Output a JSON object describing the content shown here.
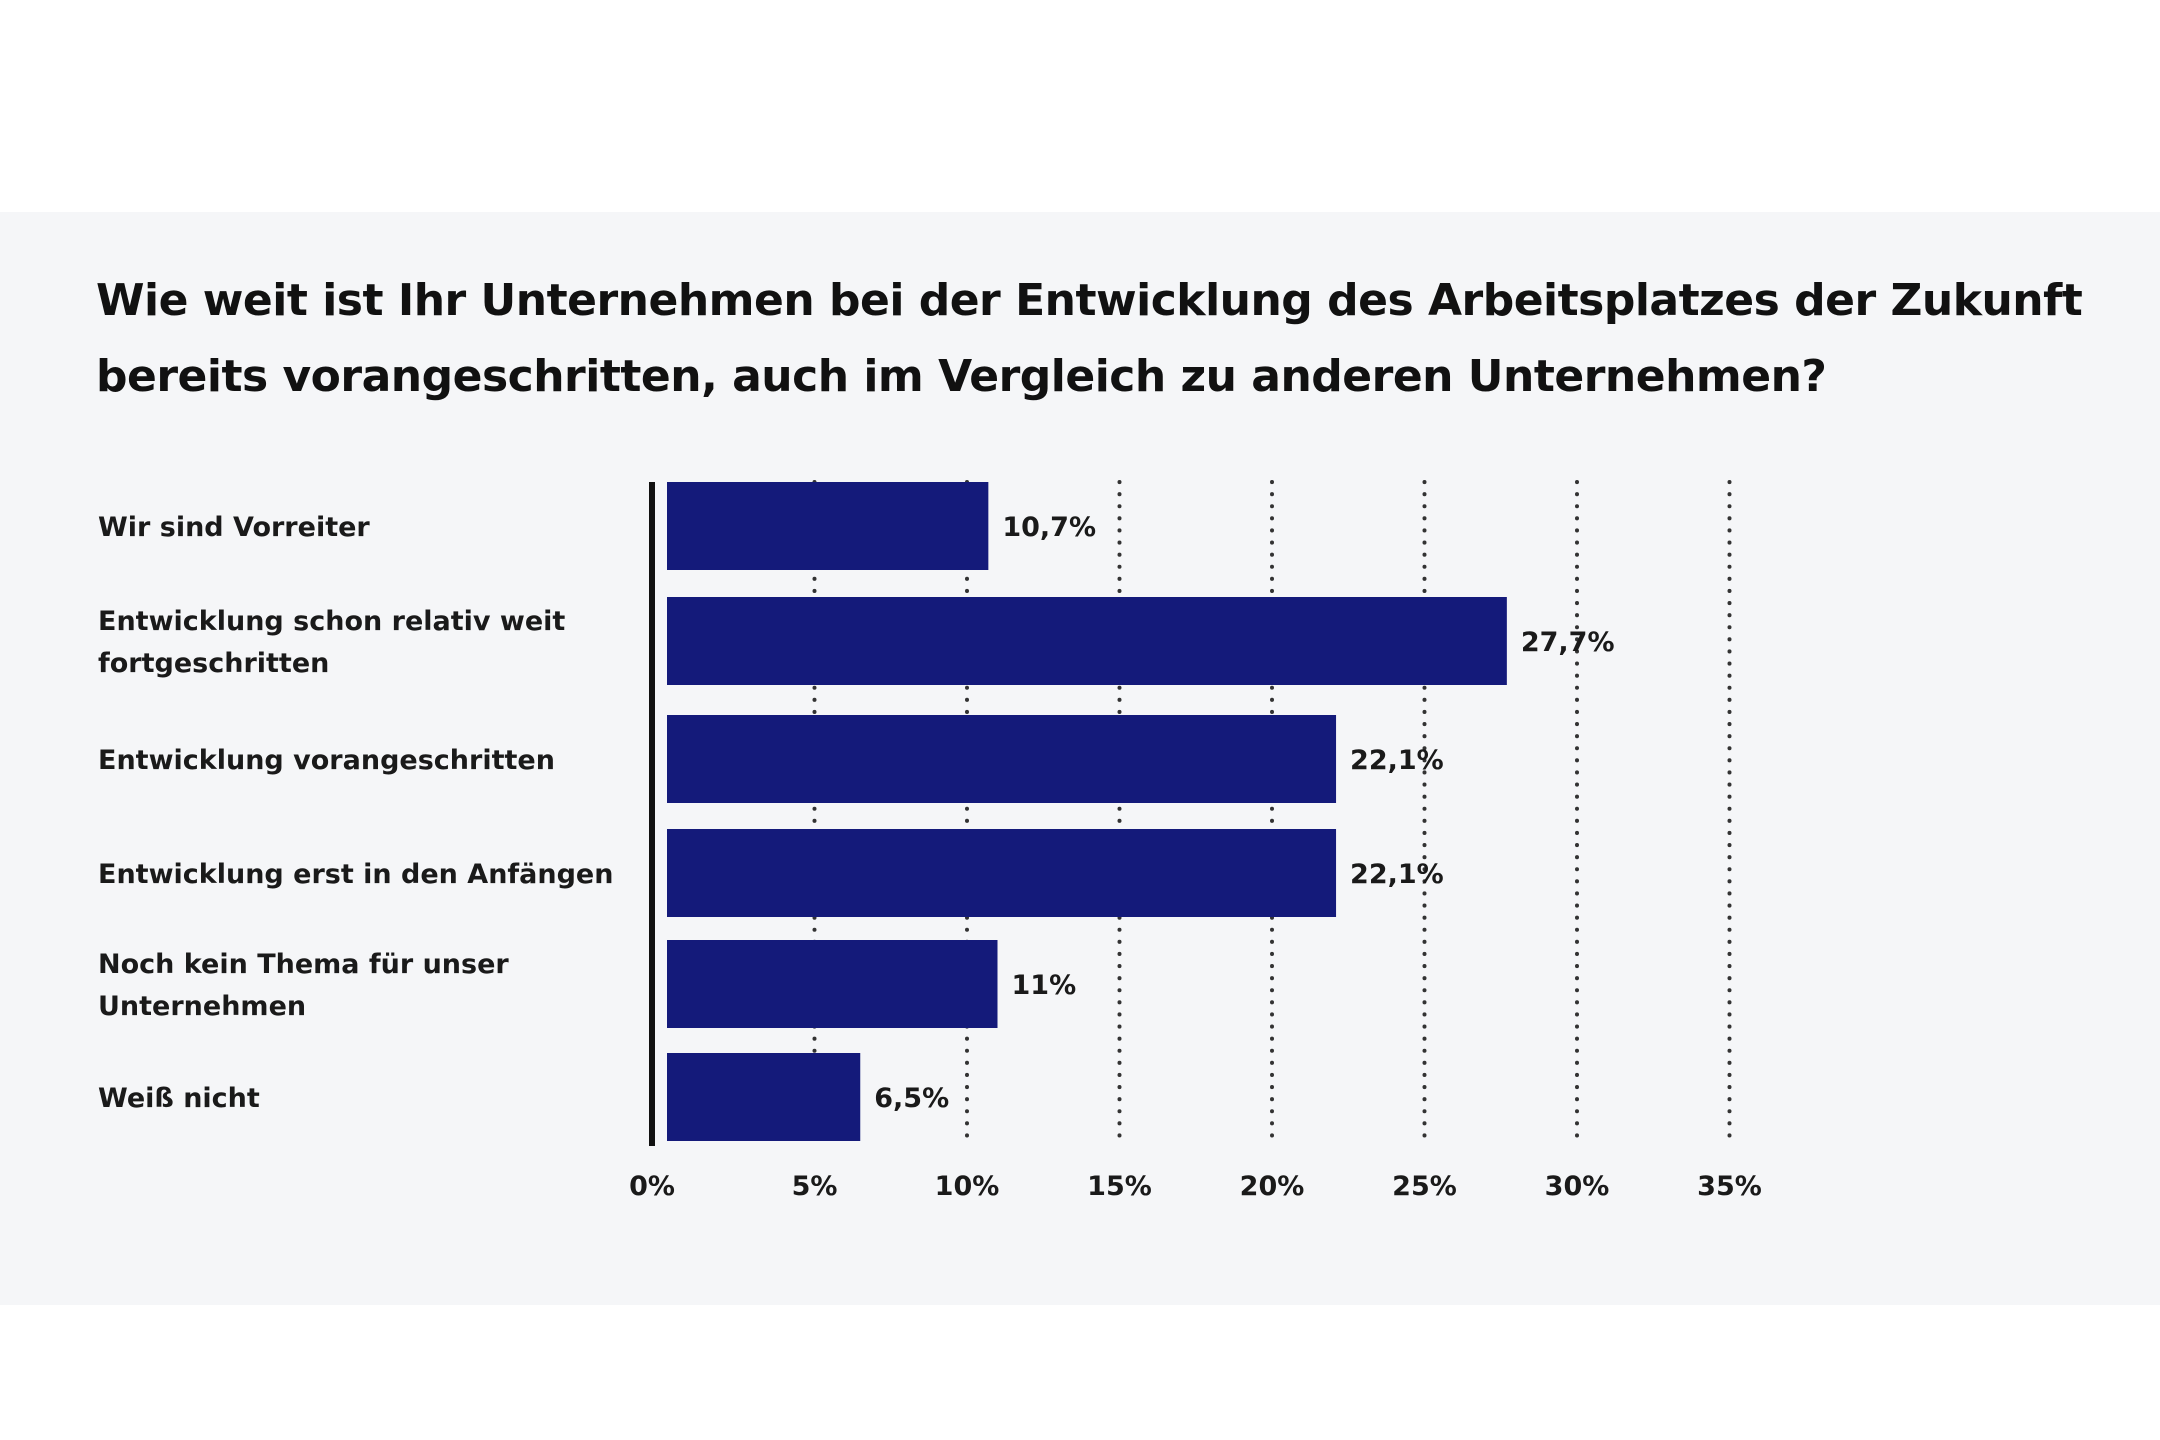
{
  "chart_data": {
    "type": "bar",
    "orientation": "horizontal",
    "title": "Wie weit ist Ihr Unternehmen bei der Entwicklung des Arbeitsplatzes der Zukunft bereits vorangeschritten, auch im Vergleich zu anderen Unternehmen?",
    "categories": [
      [
        "Wir sind Vorreiter"
      ],
      [
        "Entwicklung schon relativ weit",
        "fortgeschritten"
      ],
      [
        "Entwicklung vorangeschritten"
      ],
      [
        "Entwicklung erst in den Anfängen"
      ],
      [
        "Noch kein Thema für unser",
        "Unternehmen"
      ],
      [
        "Weiß nicht"
      ]
    ],
    "values": [
      10.7,
      27.7,
      22.1,
      22.1,
      11,
      6.5
    ],
    "value_labels": [
      "10,7%",
      "27,7%",
      "22,1%",
      "22,1%",
      "11%",
      "6,5%"
    ],
    "xlim": [
      0,
      35
    ],
    "x_ticks": [
      0,
      5,
      10,
      15,
      20,
      25,
      30,
      35
    ],
    "x_tick_labels": [
      "0%",
      "5%",
      "10%",
      "15%",
      "20%",
      "25%",
      "30%",
      "35%"
    ],
    "xlabel": "",
    "ylabel": "",
    "grid": "vertical dotted",
    "bar_color": "#141a7a",
    "axis_color": "#111111"
  }
}
